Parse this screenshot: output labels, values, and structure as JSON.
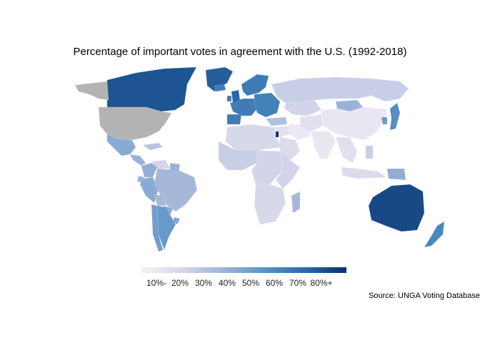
{
  "title": "Percentage of important votes in agreement with the U.S. (1992-2018)",
  "source": "Source: UNGA Voting Database",
  "legend": {
    "ticks": [
      "10%-",
      "20%",
      "30%",
      "40%",
      "50%",
      "60%",
      "70%",
      "80%+"
    ],
    "range": [
      5,
      85
    ],
    "gradient": [
      "#f7f0f7",
      "#d6d6ea",
      "#9fb4d8",
      "#5a93c6",
      "#2a6aa8",
      "#08306b"
    ]
  },
  "colors": {
    "no_data": "#b3b3b3"
  },
  "chart_data": {
    "type": "choropleth",
    "measure": "percent of important votes in agreement with the U.S.",
    "regions": [
      {
        "name": "Canada",
        "value": 75
      },
      {
        "name": "United States",
        "value": null
      },
      {
        "name": "Alaska",
        "value": null
      },
      {
        "name": "Greenland",
        "value": 72
      },
      {
        "name": "Mexico",
        "value": 42
      },
      {
        "name": "Central America",
        "value": 38
      },
      {
        "name": "Caribbean",
        "value": 30
      },
      {
        "name": "Venezuela",
        "value": 22
      },
      {
        "name": "Colombia",
        "value": 40
      },
      {
        "name": "Ecuador",
        "value": 38
      },
      {
        "name": "Peru",
        "value": 42
      },
      {
        "name": "Brazil",
        "value": 35
      },
      {
        "name": "Bolivia",
        "value": 35
      },
      {
        "name": "Paraguay",
        "value": 42
      },
      {
        "name": "Chile",
        "value": 48
      },
      {
        "name": "Argentina",
        "value": 50
      },
      {
        "name": "Uruguay",
        "value": 45
      },
      {
        "name": "Guianas",
        "value": 38
      },
      {
        "name": "Western Europe",
        "value": 62
      },
      {
        "name": "United Kingdom",
        "value": 70
      },
      {
        "name": "Ireland",
        "value": 62
      },
      {
        "name": "Scandinavia",
        "value": 62
      },
      {
        "name": "Iceland",
        "value": 62
      },
      {
        "name": "Eastern Europe",
        "value": 60
      },
      {
        "name": "Iberia",
        "value": 62
      },
      {
        "name": "Turkey",
        "value": 32
      },
      {
        "name": "Russia",
        "value": 25
      },
      {
        "name": "Kazakhstan",
        "value": 22
      },
      {
        "name": "Mongolia",
        "value": 38
      },
      {
        "name": "China",
        "value": 12
      },
      {
        "name": "Japan",
        "value": 55
      },
      {
        "name": "South Korea",
        "value": 50
      },
      {
        "name": "North Korea",
        "value": 10
      },
      {
        "name": "Middle East",
        "value": 15
      },
      {
        "name": "Saudi Arabia",
        "value": 18
      },
      {
        "name": "Israel",
        "value": 90
      },
      {
        "name": "Iran",
        "value": 10
      },
      {
        "name": "Central Asia",
        "value": 15
      },
      {
        "name": "India",
        "value": 12
      },
      {
        "name": "Southeast Asia",
        "value": 15
      },
      {
        "name": "Philippines",
        "value": 25
      },
      {
        "name": "Indonesia",
        "value": 18
      },
      {
        "name": "Papua New Guinea",
        "value": 40
      },
      {
        "name": "North Africa",
        "value": 20
      },
      {
        "name": "West Africa",
        "value": 25
      },
      {
        "name": "Central Africa",
        "value": 22
      },
      {
        "name": "East Africa",
        "value": 22
      },
      {
        "name": "Southern Africa",
        "value": 20
      },
      {
        "name": "Madagascar",
        "value": 35
      },
      {
        "name": "Australia",
        "value": 78
      },
      {
        "name": "New Zealand",
        "value": 58
      }
    ]
  }
}
